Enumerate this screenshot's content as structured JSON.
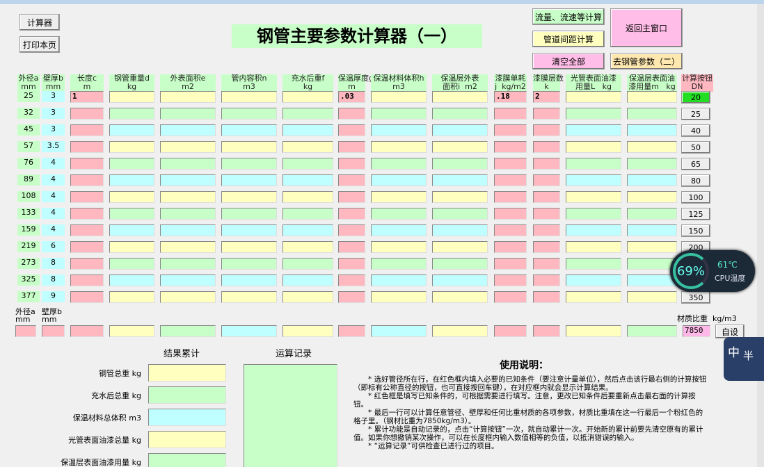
{
  "buttons": {
    "calculator": "计算器",
    "print": "打印本页",
    "flow": "流量、流速等计算",
    "spacing": "管道间距计算",
    "clear": "清空全部",
    "back": "返回主窗口",
    "next": "去钢管参数（二）"
  },
  "title": "钢管主要参数计算器（一）",
  "table": {
    "headers": [
      [
        "外径a",
        "mm"
      ],
      [
        "壁厚b",
        "mm"
      ],
      [
        "长度c",
        "m"
      ],
      [
        "钢管重量d",
        "kg"
      ],
      [
        "外表面积e",
        "m2"
      ],
      [
        "管内容积n",
        "m3"
      ],
      [
        "充水后重f",
        "kg"
      ],
      [
        "保温厚度g",
        "m"
      ],
      [
        "保温材料体积h",
        "m3"
      ],
      [
        "保温层外表",
        "面积i  m2"
      ],
      [
        "漆膜单耗",
        "j  kg/m2"
      ],
      [
        "漆膜层数",
        "k"
      ],
      [
        "光管表面油漆",
        "用量L   kg"
      ],
      [
        "保温层表面油",
        "漆用量m   kg"
      ],
      [
        "计算按钮",
        "DN"
      ]
    ],
    "rows": [
      {
        "od": "25",
        "wall": "3",
        "dn": "20"
      },
      {
        "od": "32",
        "wall": "3",
        "dn": "25"
      },
      {
        "od": "45",
        "wall": "3",
        "dn": "40"
      },
      {
        "od": "57",
        "wall": "3.5",
        "dn": "50"
      },
      {
        "od": "76",
        "wall": "4",
        "dn": "65"
      },
      {
        "od": "89",
        "wall": "4",
        "dn": "80"
      },
      {
        "od": "108",
        "wall": "4",
        "dn": "100"
      },
      {
        "od": "133",
        "wall": "4",
        "dn": "125"
      },
      {
        "od": "159",
        "wall": "4",
        "dn": "150"
      },
      {
        "od": "219",
        "wall": "6",
        "dn": "200"
      },
      {
        "od": "273",
        "wall": "8",
        "dn": null
      },
      {
        "od": "325",
        "wall": "8",
        "dn": null
      },
      {
        "od": "377",
        "wall": "9",
        "dn": "350"
      }
    ],
    "first_row_inputs": {
      "length": "1",
      "insulation_thickness": ".03",
      "paint_consumption": ".18",
      "paint_layers": "2"
    }
  },
  "custom_row": {
    "headers": [
      [
        "外径a",
        "mm"
      ],
      [
        "壁厚b",
        "mm"
      ]
    ],
    "density_label": "材质比重  kg/m3",
    "density": "7850",
    "set_button": "自设"
  },
  "results": {
    "title": "结果累计",
    "items": [
      "钢管总重 kg",
      "充水后总重 kg",
      "保温材料总体积 m3",
      "光管表面油漆总量 kg",
      "保温层表面油漆用量 kg"
    ]
  },
  "log": {
    "title": "运算记录"
  },
  "instructions": {
    "title": "使用说明：",
    "paragraphs": [
      "* 选好管径所在行，在红色框内填入必要的已知条件（要注意计量单位），然后点击该行最右侧的计算按钮（即标有公称直径的按钮，也可直接按回车键），在对应框内就会显示计算结果。",
      "* 红色框是填写已知条件的，可根据需要进行填写。注意，更改已知条件后要重新点击最右面的计算按钮。",
      "* 最后一行可以计算任意管径、壁厚和任何比重材质的各项参数，材质比重填在这一行最后一个粉红色的格子里。（钢材比重为7850kg/m3）。",
      "* 累计功能是自动记录的，点击“计算按钮”一次，就自动累计一次。开始新的累计前要先清空原有的累计值。如果你想撤销某次操作，可以在长度框内输入数值相等的负值，以抵消错误的输入。",
      "* “运算记录”可供检查已进行过的项目。"
    ]
  },
  "overlay": {
    "cpu_percent": "69%",
    "temp": "61℃",
    "label": "CPU温度",
    "ime": [
      "中",
      "半"
    ]
  }
}
